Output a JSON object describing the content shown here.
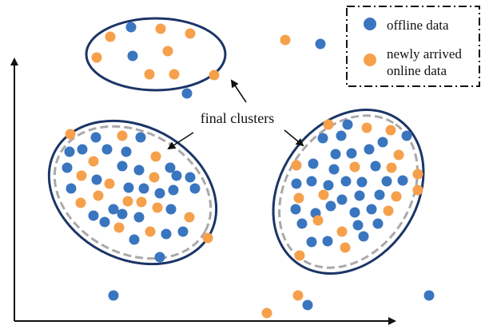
{
  "legend": {
    "offline_label": "offline data",
    "online_label_line1": "newly arrived",
    "online_label_line2": "online data"
  },
  "annotation": {
    "text": "final clusters"
  },
  "colors": {
    "offline": "#3a75bf",
    "online": "#f6a04b",
    "cluster_outline": "#1b3566",
    "dashed_outline": "#a9a9a9",
    "axis": "#111111"
  }
}
